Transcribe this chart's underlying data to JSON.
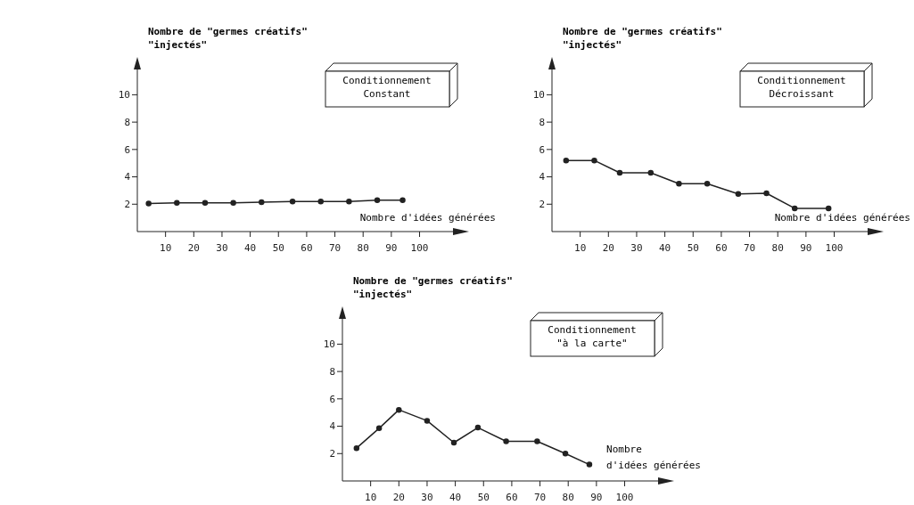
{
  "chart_data": [
    {
      "type": "line",
      "title": "Conditionnement\nConstant",
      "xlabel": "Nombre d'idées générées",
      "ylabel": "Nombre de \"germes créatifs\"\n\"injectés\"",
      "x": [
        4,
        14,
        24,
        34,
        44,
        55,
        65,
        75,
        85,
        94
      ],
      "values": [
        2.05,
        2.1,
        2.1,
        2.1,
        2.15,
        2.2,
        2.2,
        2.2,
        2.3,
        2.3
      ],
      "color": "#222222",
      "xlim": [
        0,
        115
      ],
      "ylim": [
        0,
        12.5
      ],
      "xticks": [
        10,
        20,
        30,
        40,
        50,
        60,
        70,
        80,
        90,
        100
      ],
      "yticks": [
        2,
        4,
        6,
        8,
        10
      ],
      "grid": false,
      "marker": "circle",
      "line_style": "solid"
    },
    {
      "type": "line",
      "title": "Conditionnement\nDécroissant",
      "xlabel": "Nombre d'idées générées",
      "ylabel": "Nombre de \"germes créatifs\"\n\"injectés\"",
      "x": [
        5,
        15,
        24,
        35,
        45,
        55,
        66,
        76,
        86,
        98
      ],
      "values": [
        5.2,
        5.2,
        4.3,
        4.3,
        3.5,
        3.5,
        2.75,
        2.8,
        1.7,
        1.7
      ],
      "color": "#222222",
      "xlim": [
        0,
        115
      ],
      "ylim": [
        0,
        12.5
      ],
      "xticks": [
        10,
        20,
        30,
        40,
        50,
        60,
        70,
        80,
        90,
        100
      ],
      "yticks": [
        2,
        4,
        6,
        8,
        10
      ],
      "grid": false,
      "marker": "circle",
      "line_style": "solid"
    },
    {
      "type": "line",
      "title": "Conditionnement\n\"à la carte\"",
      "xlabel": "Nombre\nd'idées générées",
      "ylabel": "Nombre de \"germes créatifs\"\n\"injectés\"",
      "x": [
        5,
        13,
        20,
        30,
        39.5,
        48,
        58,
        69,
        79,
        87.5
      ],
      "values": [
        2.4,
        3.85,
        5.2,
        4.4,
        2.8,
        3.9,
        2.9,
        2.9,
        2,
        1.2
      ],
      "color": "#222222",
      "xlim": [
        0,
        115
      ],
      "ylim": [
        0,
        12.5
      ],
      "xticks": [
        10,
        20,
        30,
        40,
        50,
        60,
        70,
        80,
        90,
        100
      ],
      "yticks": [
        2,
        4,
        6,
        8,
        10
      ],
      "grid": false,
      "marker": "circle",
      "line_style": "solid"
    }
  ]
}
